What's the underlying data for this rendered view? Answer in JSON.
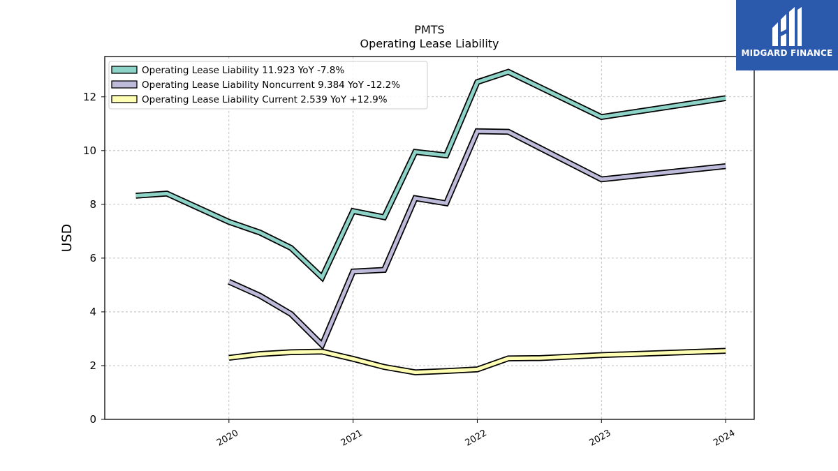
{
  "chart_data": {
    "type": "line",
    "title": "PMTS",
    "subtitle": "Operating Lease Liability",
    "ylabel": "USD",
    "xlabel": "",
    "ylim": [
      0,
      13.5
    ],
    "xlim": [
      2019.0,
      2024.23
    ],
    "yticks": [
      0,
      2,
      4,
      6,
      8,
      10,
      12
    ],
    "xticks": [
      {
        "value": 2020.0,
        "label": "2020"
      },
      {
        "value": 2021.0,
        "label": "2021"
      },
      {
        "value": 2022.0,
        "label": "2022"
      },
      {
        "value": 2023.0,
        "label": "2023"
      },
      {
        "value": 2024.0,
        "label": "2024"
      }
    ],
    "grid": true,
    "legend_position": "top-left",
    "series": [
      {
        "name": "Operating Lease Liability  11.923 YoY -7.8%",
        "color": "#8dd3c7",
        "points": [
          [
            2019.25,
            8.32
          ],
          [
            2019.5,
            8.4
          ],
          [
            2020.0,
            7.35
          ],
          [
            2020.25,
            6.95
          ],
          [
            2020.5,
            6.38
          ],
          [
            2020.75,
            5.28
          ],
          [
            2021.0,
            7.75
          ],
          [
            2021.25,
            7.52
          ],
          [
            2021.5,
            9.95
          ],
          [
            2021.75,
            9.82
          ],
          [
            2022.0,
            12.55
          ],
          [
            2022.25,
            12.93
          ],
          [
            2023.0,
            11.25
          ],
          [
            2024.0,
            11.95
          ]
        ]
      },
      {
        "name": "Operating Lease Liability Noncurrent  9.384 YoY -12.2%",
        "color": "#bebada",
        "points": [
          [
            2020.0,
            5.12
          ],
          [
            2020.25,
            4.6
          ],
          [
            2020.5,
            3.92
          ],
          [
            2020.75,
            2.77
          ],
          [
            2021.0,
            5.5
          ],
          [
            2021.25,
            5.56
          ],
          [
            2021.5,
            8.23
          ],
          [
            2021.75,
            8.04
          ],
          [
            2022.0,
            10.72
          ],
          [
            2022.25,
            10.7
          ],
          [
            2023.0,
            8.93
          ],
          [
            2024.0,
            9.42
          ]
        ]
      },
      {
        "name": "Operating Lease Liability Current  2.539 YoY +12.9%",
        "color": "#ffffb3",
        "points": [
          [
            2020.0,
            2.29
          ],
          [
            2020.25,
            2.43
          ],
          [
            2020.5,
            2.5
          ],
          [
            2020.75,
            2.52
          ],
          [
            2021.0,
            2.25
          ],
          [
            2021.25,
            1.95
          ],
          [
            2021.5,
            1.75
          ],
          [
            2021.75,
            1.8
          ],
          [
            2022.0,
            1.86
          ],
          [
            2022.25,
            2.27
          ],
          [
            2022.5,
            2.28
          ],
          [
            2023.0,
            2.39
          ],
          [
            2024.0,
            2.55
          ]
        ]
      }
    ]
  },
  "logo": {
    "text": "MIDGARD FINANCE",
    "background": "#2b5aad"
  }
}
